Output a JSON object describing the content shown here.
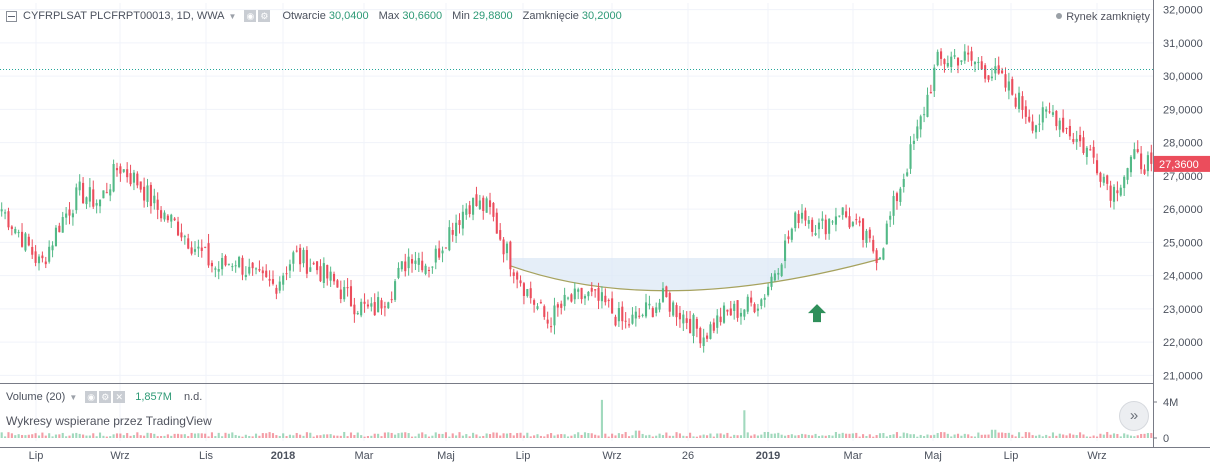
{
  "legend": {
    "symbol": "CYFRPLSAT PLCFRPT00013, 1D, WWA",
    "open_label": "Otwarcie",
    "open": "30,0400",
    "high_label": "Max",
    "high": "30,6600",
    "low_label": "Min",
    "low": "29,8800",
    "close_label": "Zamknięcie",
    "close": "30,2000"
  },
  "market_status": "Rynek zamknięty",
  "volume_legend": {
    "label": "Volume (20)",
    "value": "1,857M",
    "na": "n.d."
  },
  "attribution": "Wykresy wspierane przez TradingView",
  "icons": {
    "collapse": "collapse-square-icon",
    "dropdown": "caret-down-icon",
    "visibility": "eye-icon",
    "settings": "gear-icon",
    "remove": "close-icon",
    "scroll": "double-chevron-right-icon",
    "signal": "up-arrow-icon"
  },
  "colors": {
    "up": "#53b987",
    "down": "#eb4d5c",
    "hline": "#26a69a",
    "price_label": "#eb4d5c",
    "arc": "#a6a25e",
    "arc_fill": "#dce8f6",
    "arrow": "#2f8f5a"
  },
  "chart_data": {
    "type": "candlestick",
    "symbol": "CYFRPLSAT PLCFRPT00013",
    "interval": "1D",
    "ylim": [
      20800,
      32200
    ],
    "y_ticks": [
      "32,0000",
      "31,0000",
      "30,0000",
      "29,0000",
      "28,0000",
      "27,0000",
      "26,0000",
      "25,0000",
      "24,0000",
      "23,0000",
      "22,0000",
      "21,0000"
    ],
    "y_tick_values": [
      32000,
      31000,
      30000,
      29000,
      28000,
      27000,
      26000,
      25000,
      24000,
      23000,
      22000,
      21000
    ],
    "x_ticks": [
      "Lip",
      "Wrz",
      "Lis",
      "2018",
      "Mar",
      "Maj",
      "Lip",
      "Wrz",
      "26",
      "2019",
      "Mar",
      "Maj",
      "Lip",
      "Wrz"
    ],
    "x_tick_bold": [
      false,
      false,
      false,
      true,
      false,
      false,
      false,
      false,
      false,
      true,
      false,
      false,
      false,
      false
    ],
    "bars": 340,
    "last_price": "27,3600",
    "last_price_value": 27360,
    "reference_line_value": 30200,
    "volume_axis": [
      "4M",
      "0"
    ],
    "volume_max": 4500000,
    "approx_closes": [
      26000,
      25200,
      24300,
      25600,
      26500,
      26200,
      27300,
      26800,
      26000,
      25500,
      24800,
      24200,
      24500,
      23900,
      23700,
      24600,
      24300,
      23800,
      23200,
      22900,
      23600,
      24700,
      24300,
      25400,
      26200,
      26000,
      24600,
      23500,
      22600,
      23200,
      23400,
      23100,
      22500,
      22900,
      23300,
      22800,
      22200,
      22800,
      23000,
      23300,
      24600,
      26000,
      25400,
      26000,
      25300,
      24600,
      26500,
      28300,
      30400,
      30600,
      30400,
      30000,
      29400,
      28600,
      28900,
      28200,
      27600,
      26500,
      27500,
      27360
    ],
    "arc_start_value": 24300,
    "arc_min_value": 23550,
    "arc_end_value": 24500,
    "signal_arrow_value": 22900
  }
}
